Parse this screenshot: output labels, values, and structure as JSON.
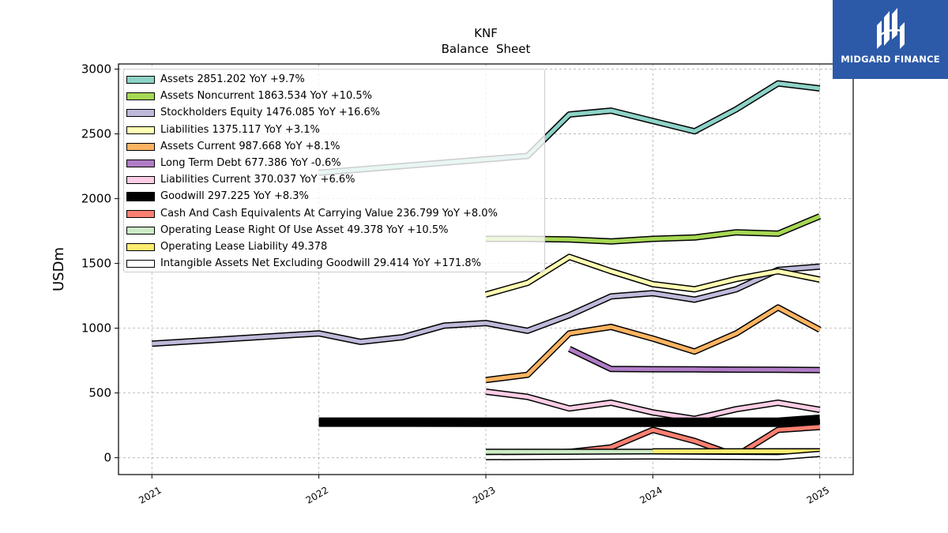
{
  "brand": {
    "name": "MIDGARD FINANCE",
    "bg_color": "#2d5aa8"
  },
  "chart_data": {
    "type": "line",
    "title": "KNF",
    "subtitle": "Balance  Sheet",
    "ylabel": "USDm",
    "xlabel": "",
    "xlim": [
      2020.8,
      2025.2
    ],
    "ylim": [
      -130,
      3040
    ],
    "x_ticks": [
      "2021",
      "2022",
      "2023",
      "2024",
      "2025"
    ],
    "y_ticks": [
      0,
      500,
      1000,
      1500,
      2000,
      2500,
      3000
    ],
    "grid": true,
    "legend_position": "top-left",
    "series": [
      {
        "name": "Assets",
        "legend": "Assets  2851.202 YoY +9.7%",
        "color": "#8dd3c7",
        "width": 5,
        "x": [
          2022,
          2023.25,
          2023.5,
          2023.75,
          2024,
          2024.25,
          2024.5,
          2024.75,
          2025
        ],
        "y": [
          2200,
          2330,
          2650,
          2680,
          2600,
          2520,
          2690,
          2890,
          2851
        ]
      },
      {
        "name": "Assets Noncurrent",
        "legend": "Assets Noncurrent  1863.534 YoY +10.5%",
        "color": "#a6d854",
        "width": 5,
        "x": [
          2023,
          2023.25,
          2023.5,
          2023.75,
          2024,
          2024.25,
          2024.5,
          2024.75,
          2025
        ],
        "y": [
          1690,
          1690,
          1685,
          1670,
          1690,
          1700,
          1740,
          1730,
          1864
        ]
      },
      {
        "name": "Stockholders Equity",
        "legend": "Stockholders Equity  1476.085 YoY +16.6%",
        "color": "#bebada",
        "width": 5,
        "x": [
          2021,
          2022,
          2022.25,
          2022.5,
          2022.75,
          2023,
          2023.25,
          2023.5,
          2023.75,
          2024,
          2024.25,
          2024.5,
          2024.75,
          2025
        ],
        "y": [
          880,
          960,
          895,
          930,
          1020,
          1040,
          980,
          1100,
          1245,
          1270,
          1220,
          1300,
          1450,
          1476
        ]
      },
      {
        "name": "Liabilities",
        "legend": "Liabilities  1375.117 YoY +3.1%",
        "color": "#ffffb3",
        "width": 5,
        "x": [
          2023,
          2023.25,
          2023.5,
          2023.75,
          2024,
          2024.25,
          2024.5,
          2024.75,
          2025
        ],
        "y": [
          1260,
          1350,
          1550,
          1440,
          1340,
          1300,
          1380,
          1440,
          1375
        ]
      },
      {
        "name": "Assets Current",
        "legend": "Assets Current  987.668 YoY +8.1%",
        "color": "#fdb462",
        "width": 5,
        "x": [
          2023,
          2023.25,
          2023.5,
          2023.75,
          2024,
          2024.25,
          2024.5,
          2024.75,
          2025
        ],
        "y": [
          600,
          640,
          960,
          1010,
          920,
          820,
          960,
          1160,
          988
        ]
      },
      {
        "name": "Long Term Debt",
        "legend": "Long Term Debt  677.386 YoY -0.6%",
        "color": "#b07cc6",
        "width": 5,
        "x": [
          2023.5,
          2023.75,
          2024,
          2024.25,
          2024.5,
          2024.75,
          2025
        ],
        "y": [
          840,
          685,
          683,
          682,
          680,
          679,
          677
        ]
      },
      {
        "name": "Liabilities Current",
        "legend": "Liabilities Current  370.037 YoY +6.6%",
        "color": "#fccde5",
        "width": 5,
        "x": [
          2023,
          2023.25,
          2023.5,
          2023.75,
          2024,
          2024.25,
          2024.5,
          2024.75,
          2025
        ],
        "y": [
          510,
          470,
          380,
          425,
          350,
          300,
          375,
          425,
          370
        ]
      },
      {
        "name": "Goodwill",
        "legend": "Goodwill  297.225 YoY +8.3%",
        "color": "#000000",
        "width": 9,
        "x": [
          2022,
          2023,
          2024,
          2024.75,
          2025
        ],
        "y": [
          275,
          274,
          274,
          274,
          297
        ]
      },
      {
        "name": "Cash And Cash Equivalents At Carrying Value",
        "legend": "Cash And Cash Equivalents At Carrying Value  236.799 YoY +8.0%",
        "color": "#fb8072",
        "width": 5,
        "x": [
          2023,
          2023.25,
          2023.5,
          2023.75,
          2024,
          2024.25,
          2024.5,
          2024.75,
          2025
        ],
        "y": [
          30,
          35,
          45,
          80,
          215,
          130,
          15,
          215,
          237
        ]
      },
      {
        "name": "Operating Lease Right Of Use Asset",
        "legend": "Operating Lease Right Of Use Asset  49.378 YoY +10.5%",
        "color": "#ccebc5",
        "width": 5,
        "x": [
          2023,
          2024,
          2025
        ],
        "y": [
          45,
          45,
          49
        ]
      },
      {
        "name": "Operating Lease Liability",
        "legend": "Operating Lease Liability  49.378",
        "color": "#ffed6f",
        "width": 5,
        "x": [
          2024,
          2025
        ],
        "y": [
          49,
          49
        ]
      },
      {
        "name": "Intangible Assets Net Excluding Goodwill",
        "legend": "Intangible Assets Net Excluding Goodwill  29.414 YoY +171.8%",
        "color": "#ffffff",
        "width": 5,
        "x": [
          2023,
          2024,
          2024.75,
          2025
        ],
        "y": [
          5,
          10,
          5,
          29
        ]
      }
    ]
  }
}
